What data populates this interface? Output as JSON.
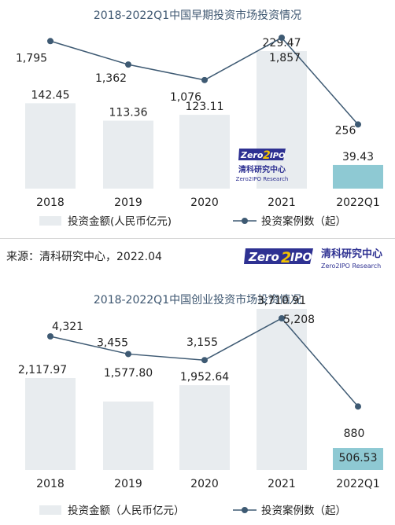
{
  "colors": {
    "bar": "#e8ecef",
    "bar_highlight": "#8ec9d3",
    "line": "#3e5a73",
    "title": "#3d5670",
    "brand_blue": "#2e3192",
    "brand_yellow": "#f2c200"
  },
  "source": "来源：清科研究中心，2022.04",
  "brand": {
    "logo_text": "Zero2IPO",
    "logo_left": "Zero",
    "logo_two": "2",
    "logo_right": "IPO",
    "cn_name": "清科研究中心",
    "en_name": "Zero2IPO Research"
  },
  "chart_data": [
    {
      "type": "bar",
      "title": "2018-2022Q1中国早期投资市场投资情况",
      "categories": [
        "2018",
        "2019",
        "2020",
        "2021",
        "2022Q1"
      ],
      "series": [
        {
          "name": "投资金额(人民币亿元)",
          "type": "bar",
          "values": [
            142.45,
            113.36,
            123.11,
            229.47,
            39.43
          ],
          "labels": [
            "142.45",
            "113.36",
            "123.11",
            "229.47",
            "39.43"
          ]
        },
        {
          "name": "投资案例数（起）",
          "type": "line",
          "values": [
            1795,
            1362,
            1076,
            1857,
            256
          ],
          "labels": [
            "1,795",
            "1,362",
            "1,076",
            "1,857",
            "256"
          ]
        }
      ],
      "legend_position": "bottom",
      "watermark": {
        "logo_text": "Zero2IPO",
        "logo_left": "Zero",
        "logo_two": "2",
        "logo_right": "IPO",
        "cn_name": "清科研究中心",
        "en_name": "Zero2IPO Research"
      }
    },
    {
      "type": "bar",
      "title": "2018-2022Q1中国创业投资市场投资情况",
      "categories": [
        "2018",
        "2019",
        "2020",
        "2021",
        "2022Q1"
      ],
      "series": [
        {
          "name": "投资金额（人民币亿元）",
          "type": "bar",
          "values": [
            2117.97,
            1577.8,
            1952.64,
            3710.91,
            506.53
          ],
          "labels": [
            "2,117.97",
            "1,577.80",
            "1,952.64",
            "3,710.91",
            "506.53"
          ]
        },
        {
          "name": "投资案例数（起）",
          "type": "line",
          "values": [
            4321,
            3455,
            3155,
            5208,
            880
          ],
          "labels": [
            "4,321",
            "3,455",
            "3,155",
            "5,208",
            "880"
          ]
        }
      ],
      "legend_position": "bottom"
    }
  ]
}
